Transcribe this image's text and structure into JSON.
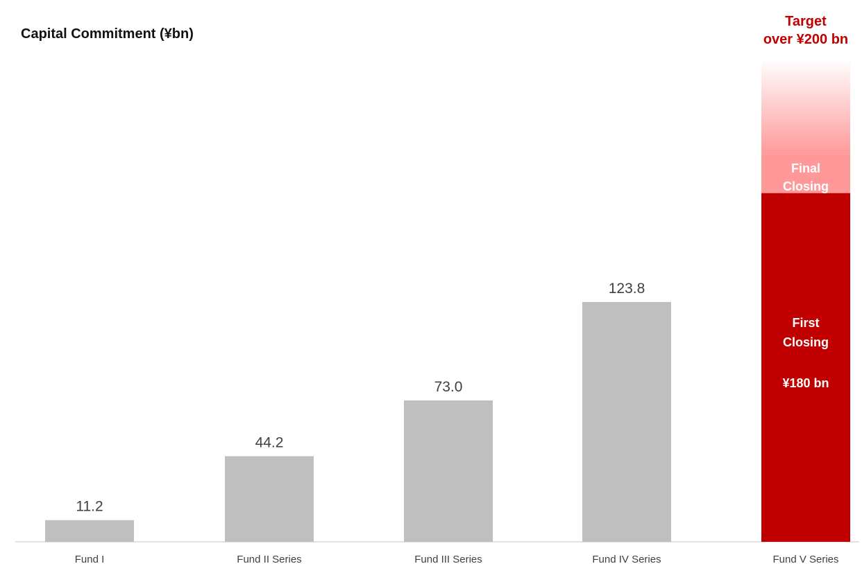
{
  "chart_data": {
    "type": "bar",
    "title": "Capital Commitment (¥bn)",
    "xlabel": "",
    "ylabel": "",
    "ylim": [
      0,
      230
    ],
    "grid": false,
    "legend": "none",
    "categories": [
      "Fund I",
      "Fund II Series",
      "Fund III Series",
      "Fund IV Series",
      "Fund V Series"
    ],
    "series": [
      {
        "values": [
          11.2,
          44.2,
          73.0,
          123.8,
          null
        ],
        "value_labels": [
          "11.2",
          "44.2",
          "73.0",
          "123.8",
          ""
        ],
        "color": "#bfbfbf"
      }
    ],
    "target_bar": {
      "category": "Fund V Series",
      "first_closing": {
        "value": 180,
        "label_lines": [
          "First",
          "Closing"
        ],
        "amount_label": "¥180 bn",
        "color": "#c00000"
      },
      "final_closing": {
        "label_lines": [
          "Final",
          "Closing"
        ],
        "color": "#ff9999"
      },
      "target": {
        "value": 200,
        "label_lines": [
          "Target",
          "over ¥200 bn"
        ],
        "color": "#c00000"
      }
    },
    "colors": {
      "bar": "#bfbfbf",
      "accent": "#c00000",
      "accent_light": "#ff9999",
      "axis": "#d9d9d9",
      "label_text": "#404040",
      "title_text": "#111111"
    }
  }
}
